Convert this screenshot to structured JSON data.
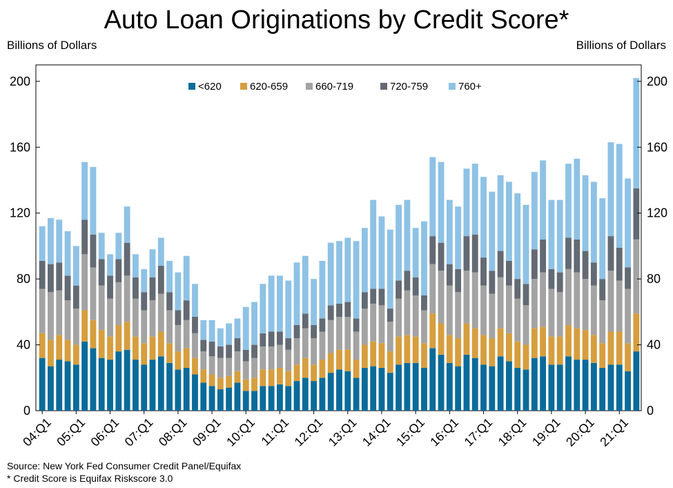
{
  "chart_data": {
    "type": "bar",
    "stacked": true,
    "title": "Auto Loan Originations by Credit Score*",
    "ylabel_left": "Billions of Dollars",
    "ylabel_right": "Billions of Dollars",
    "ylim": [
      0,
      210
    ],
    "yticks": [
      0,
      40,
      80,
      120,
      160,
      200
    ],
    "xtick_labels": [
      "04:Q1",
      "05:Q1",
      "06:Q1",
      "07:Q1",
      "08:Q1",
      "09:Q1",
      "10:Q1",
      "11:Q1",
      "12:Q1",
      "13:Q1",
      "14:Q1",
      "15:Q1",
      "16:Q1",
      "17:Q1",
      "18:Q1",
      "19:Q1",
      "20:Q1",
      "21:Q1"
    ],
    "legend_position": "top-center",
    "grid": false,
    "categories": [
      "04:Q1",
      "04:Q2",
      "04:Q3",
      "04:Q4",
      "05:Q1",
      "05:Q2",
      "05:Q3",
      "05:Q4",
      "06:Q1",
      "06:Q2",
      "06:Q3",
      "06:Q4",
      "07:Q1",
      "07:Q2",
      "07:Q3",
      "07:Q4",
      "08:Q1",
      "08:Q2",
      "08:Q3",
      "08:Q4",
      "09:Q1",
      "09:Q2",
      "09:Q3",
      "09:Q4",
      "10:Q1",
      "10:Q2",
      "10:Q3",
      "10:Q4",
      "11:Q1",
      "11:Q2",
      "11:Q3",
      "11:Q4",
      "12:Q1",
      "12:Q2",
      "12:Q3",
      "12:Q4",
      "13:Q1",
      "13:Q2",
      "13:Q3",
      "13:Q4",
      "14:Q1",
      "14:Q2",
      "14:Q3",
      "14:Q4",
      "15:Q1",
      "15:Q2",
      "15:Q3",
      "15:Q4",
      "16:Q1",
      "16:Q2",
      "16:Q3",
      "16:Q4",
      "17:Q1",
      "17:Q2",
      "17:Q3",
      "17:Q4",
      "18:Q1",
      "18:Q2",
      "18:Q3",
      "18:Q4",
      "19:Q1",
      "19:Q2",
      "19:Q3",
      "19:Q4",
      "20:Q1",
      "20:Q2",
      "20:Q3",
      "20:Q4",
      "21:Q1",
      "21:Q2",
      "21:Q3"
    ],
    "series": [
      {
        "name": "<620",
        "color": "#0a6b99",
        "values": [
          32,
          27,
          31,
          30,
          28,
          42,
          38,
          32,
          31,
          36,
          37,
          31,
          28,
          31,
          33,
          29,
          25,
          26,
          22,
          17,
          15,
          13,
          14,
          17,
          12,
          12,
          15,
          15,
          16,
          15,
          18,
          20,
          18,
          20,
          23,
          25,
          24,
          20,
          26,
          27,
          26,
          23,
          28,
          29,
          29,
          26,
          38,
          34,
          29,
          27,
          34,
          32,
          28,
          27,
          33,
          30,
          26,
          25,
          32,
          33,
          28,
          28,
          33,
          31,
          31,
          29,
          26,
          28,
          28,
          24,
          36
        ]
      },
      {
        "name": "620-659",
        "color": "#d69e3e",
        "values": [
          15,
          16,
          15,
          13,
          12,
          19,
          17,
          17,
          14,
          16,
          17,
          14,
          13,
          14,
          15,
          12,
          11,
          12,
          10,
          8,
          7,
          7,
          7,
          7,
          7,
          8,
          10,
          10,
          10,
          9,
          10,
          12,
          10,
          11,
          12,
          12,
          13,
          11,
          14,
          15,
          15,
          13,
          17,
          17,
          16,
          15,
          21,
          19,
          17,
          17,
          19,
          18,
          18,
          17,
          17,
          17,
          16,
          15,
          18,
          18,
          17,
          17,
          19,
          19,
          18,
          17,
          15,
          20,
          20,
          17,
          23
        ]
      },
      {
        "name": "660-719",
        "color": "#a3a3a3",
        "values": [
          27,
          29,
          27,
          24,
          22,
          34,
          32,
          27,
          23,
          26,
          28,
          23,
          20,
          22,
          23,
          20,
          16,
          17,
          15,
          11,
          11,
          12,
          11,
          12,
          11,
          12,
          14,
          14,
          14,
          13,
          16,
          18,
          16,
          17,
          20,
          20,
          20,
          17,
          22,
          23,
          23,
          18,
          23,
          27,
          25,
          20,
          30,
          32,
          30,
          28,
          32,
          34,
          30,
          27,
          31,
          29,
          26,
          24,
          30,
          33,
          29,
          27,
          34,
          34,
          31,
          30,
          26,
          37,
          31,
          33,
          45
        ]
      },
      {
        "name": "720-759",
        "color": "#636a73",
        "values": [
          17,
          17,
          17,
          15,
          14,
          21,
          20,
          16,
          14,
          14,
          20,
          13,
          11,
          14,
          17,
          11,
          9,
          12,
          10,
          7,
          9,
          7,
          8,
          8,
          7,
          8,
          8,
          9,
          8,
          7,
          8,
          9,
          8,
          8,
          9,
          8,
          9,
          8,
          10,
          9,
          10,
          8,
          11,
          12,
          11,
          9,
          17,
          17,
          13,
          14,
          21,
          23,
          17,
          14,
          16,
          15,
          12,
          13,
          18,
          20,
          12,
          12,
          19,
          20,
          17,
          14,
          13,
          21,
          20,
          13,
          31
        ]
      },
      {
        "name": "760+",
        "color": "#8ec2e5",
        "values": [
          21,
          28,
          26,
          27,
          24,
          35,
          41,
          16,
          13,
          16,
          22,
          14,
          14,
          17,
          17,
          19,
          23,
          27,
          20,
          12,
          13,
          11,
          13,
          12,
          26,
          26,
          30,
          34,
          34,
          35,
          38,
          35,
          28,
          35,
          38,
          38,
          39,
          47,
          39,
          54,
          44,
          48,
          46,
          43,
          30,
          45,
          48,
          49,
          39,
          38,
          41,
          43,
          49,
          48,
          46,
          48,
          52,
          48,
          47,
          48,
          42,
          44,
          45,
          49,
          46,
          49,
          49,
          57,
          63,
          54,
          67
        ]
      }
    ]
  },
  "notes": {
    "source": "Source: New York Fed Consumer Credit Panel/Equifax",
    "footnote": "* Credit Score is Equifax Riskscore 3.0"
  }
}
